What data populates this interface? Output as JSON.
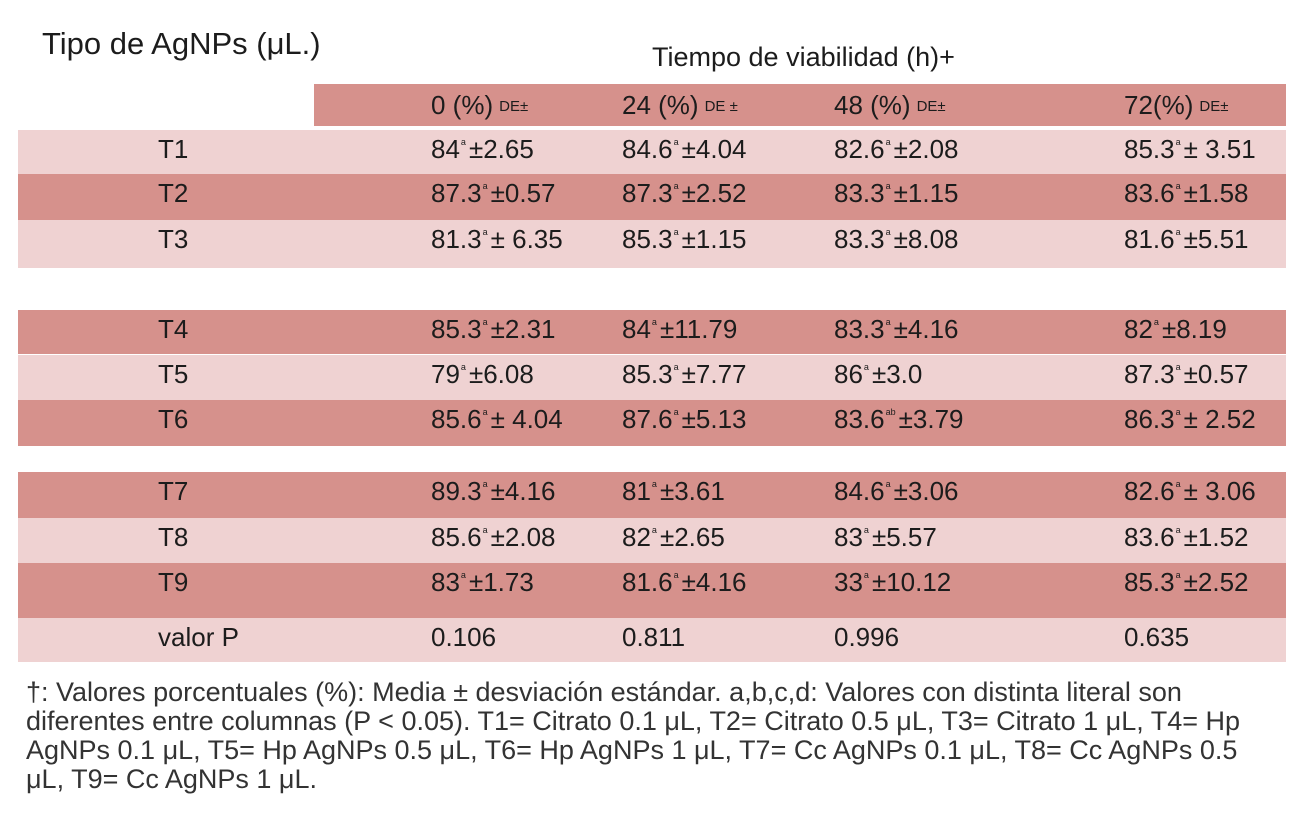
{
  "title_left": "Tipo de AgNPs (μL.)",
  "title_center": "Tiempo de viabilidad (h)+",
  "headers": [
    {
      "main": "0 (%)",
      "sub": "DE±"
    },
    {
      "main": "24 (%)",
      "sub": "DE ±"
    },
    {
      "main": "48 (%)",
      "sub": "DE±"
    },
    {
      "main": "72(%)",
      "sub": "DE±"
    }
  ],
  "rows": [
    {
      "label": "T1",
      "cells": [
        {
          "v": "84",
          "s": "a",
          "sd": "±2.65"
        },
        {
          "v": "84.6",
          "s": "a",
          "sd": "±4.04"
        },
        {
          "v": "82.6",
          "s": "a",
          "sd": "±2.08"
        },
        {
          "v": "85.3",
          "s": "a",
          "sd": "± 3.51"
        }
      ]
    },
    {
      "label": "T2",
      "cells": [
        {
          "v": "87.3",
          "s": "a",
          "sd": "±0.57"
        },
        {
          "v": "87.3",
          "s": "a",
          "sd": "±2.52"
        },
        {
          "v": "83.3",
          "s": "a",
          "sd": "±1.15"
        },
        {
          "v": "83.6",
          "s": "a",
          "sd": "±1.58"
        }
      ]
    },
    {
      "label": "T3",
      "cells": [
        {
          "v": "81.3",
          "s": "a",
          "sd": "± 6.35"
        },
        {
          "v": "85.3",
          "s": "a",
          "sd": "±1.15"
        },
        {
          "v": "83.3",
          "s": "a",
          "sd": "±8.08"
        },
        {
          "v": "81.6",
          "s": "a",
          "sd": "±5.51"
        }
      ]
    },
    {
      "label": "T4",
      "cells": [
        {
          "v": "85.3",
          "s": "a",
          "sd": "±2.31"
        },
        {
          "v": "84",
          "s": "a",
          "sd": "±11.79"
        },
        {
          "v": "83.3",
          "s": "a",
          "sd": "±4.16"
        },
        {
          "v": "82",
          "s": "a",
          "sd": "±8.19"
        }
      ]
    },
    {
      "label": "T5",
      "cells": [
        {
          "v": "79",
          "s": "a",
          "sd": "±6.08"
        },
        {
          "v": "85.3",
          "s": "a",
          "sd": "±7.77"
        },
        {
          "v": "86",
          "s": "a",
          "sd": "±3.0"
        },
        {
          "v": "87.3",
          "s": "a",
          "sd": "±0.57"
        }
      ]
    },
    {
      "label": "T6",
      "cells": [
        {
          "v": "85.6",
          "s": "a",
          "sd": "± 4.04"
        },
        {
          "v": "87.6",
          "s": "a",
          "sd": "±5.13"
        },
        {
          "v": "83.6",
          "s": "ab",
          "sd": "±3.79"
        },
        {
          "v": "86.3",
          "s": "a",
          "sd": "± 2.52"
        }
      ]
    },
    {
      "label": "T7",
      "cells": [
        {
          "v": "89.3",
          "s": "a",
          "sd": "±4.16"
        },
        {
          "v": "81",
          "s": "a",
          "sd": "±3.61"
        },
        {
          "v": "84.6",
          "s": "a",
          "sd": "±3.06"
        },
        {
          "v": "82.6",
          "s": "a",
          "sd": "± 3.06"
        }
      ]
    },
    {
      "label": "T8",
      "cells": [
        {
          "v": "85.6",
          "s": "a",
          "sd": "±2.08"
        },
        {
          "v": "82",
          "s": "a",
          "sd": "±2.65"
        },
        {
          "v": "83",
          "s": "a",
          "sd": "±5.57"
        },
        {
          "v": "83.6",
          "s": "a",
          "sd": "±1.52"
        }
      ]
    },
    {
      "label": "T9",
      "cells": [
        {
          "v": "83",
          "s": "a",
          "sd": "±1.73"
        },
        {
          "v": "81.6",
          "s": "a",
          "sd": "±4.16"
        },
        {
          "v": "33",
          "s": "a",
          "sd": "±10.12"
        },
        {
          "v": "85.3",
          "s": "a",
          "sd": "±2.52"
        }
      ]
    },
    {
      "label": "valor P",
      "cells": [
        {
          "v": "0.106",
          "s": "",
          "sd": ""
        },
        {
          "v": "0.811",
          "s": "",
          "sd": ""
        },
        {
          "v": "0.996",
          "s": "",
          "sd": ""
        },
        {
          "v": "0.635",
          "s": "",
          "sd": ""
        }
      ]
    }
  ],
  "footnote": "†: Valores porcentuales (%): Media ± desviación estándar. a,b,c,d: Valores con distinta literal son diferentes entre columnas (P < 0.05). T1= Citrato 0.1 μL, T2= Citrato 0.5 μL, T3= Citrato 1 μL, T4= Hp AgNPs 0.1 μL, T5= Hp AgNPs 0.5 μL, T6= Hp AgNPs 1 μL, T7= Cc AgNPs 0.1 μL, T8= Cc AgNPs 0.5 μL, T9= Cc AgNPs 1 μL.",
  "colors": {
    "dark_band": "#d6918c",
    "light_band": "#efd2d2"
  }
}
